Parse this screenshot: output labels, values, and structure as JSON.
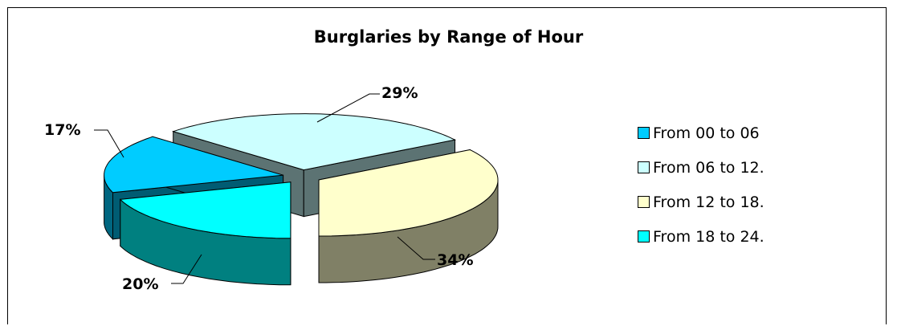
{
  "chart_data": {
    "type": "pie",
    "title": "Burglaries by Range of Hour",
    "slices": [
      {
        "label": "From 00 to 06",
        "value": 17,
        "display": "17%",
        "color": "#00ccff"
      },
      {
        "label": "From 06 to 12.",
        "value": 29,
        "display": "29%",
        "color": "#ccffff"
      },
      {
        "label": "From 12 to 18.",
        "value": 34,
        "display": "34%",
        "color": "#ffffcc"
      },
      {
        "label": "From 18 to 24.",
        "value": 20,
        "display": "20%",
        "color": "#00ffff"
      }
    ],
    "legend_position": "right",
    "exploded": true,
    "three_d": true
  }
}
